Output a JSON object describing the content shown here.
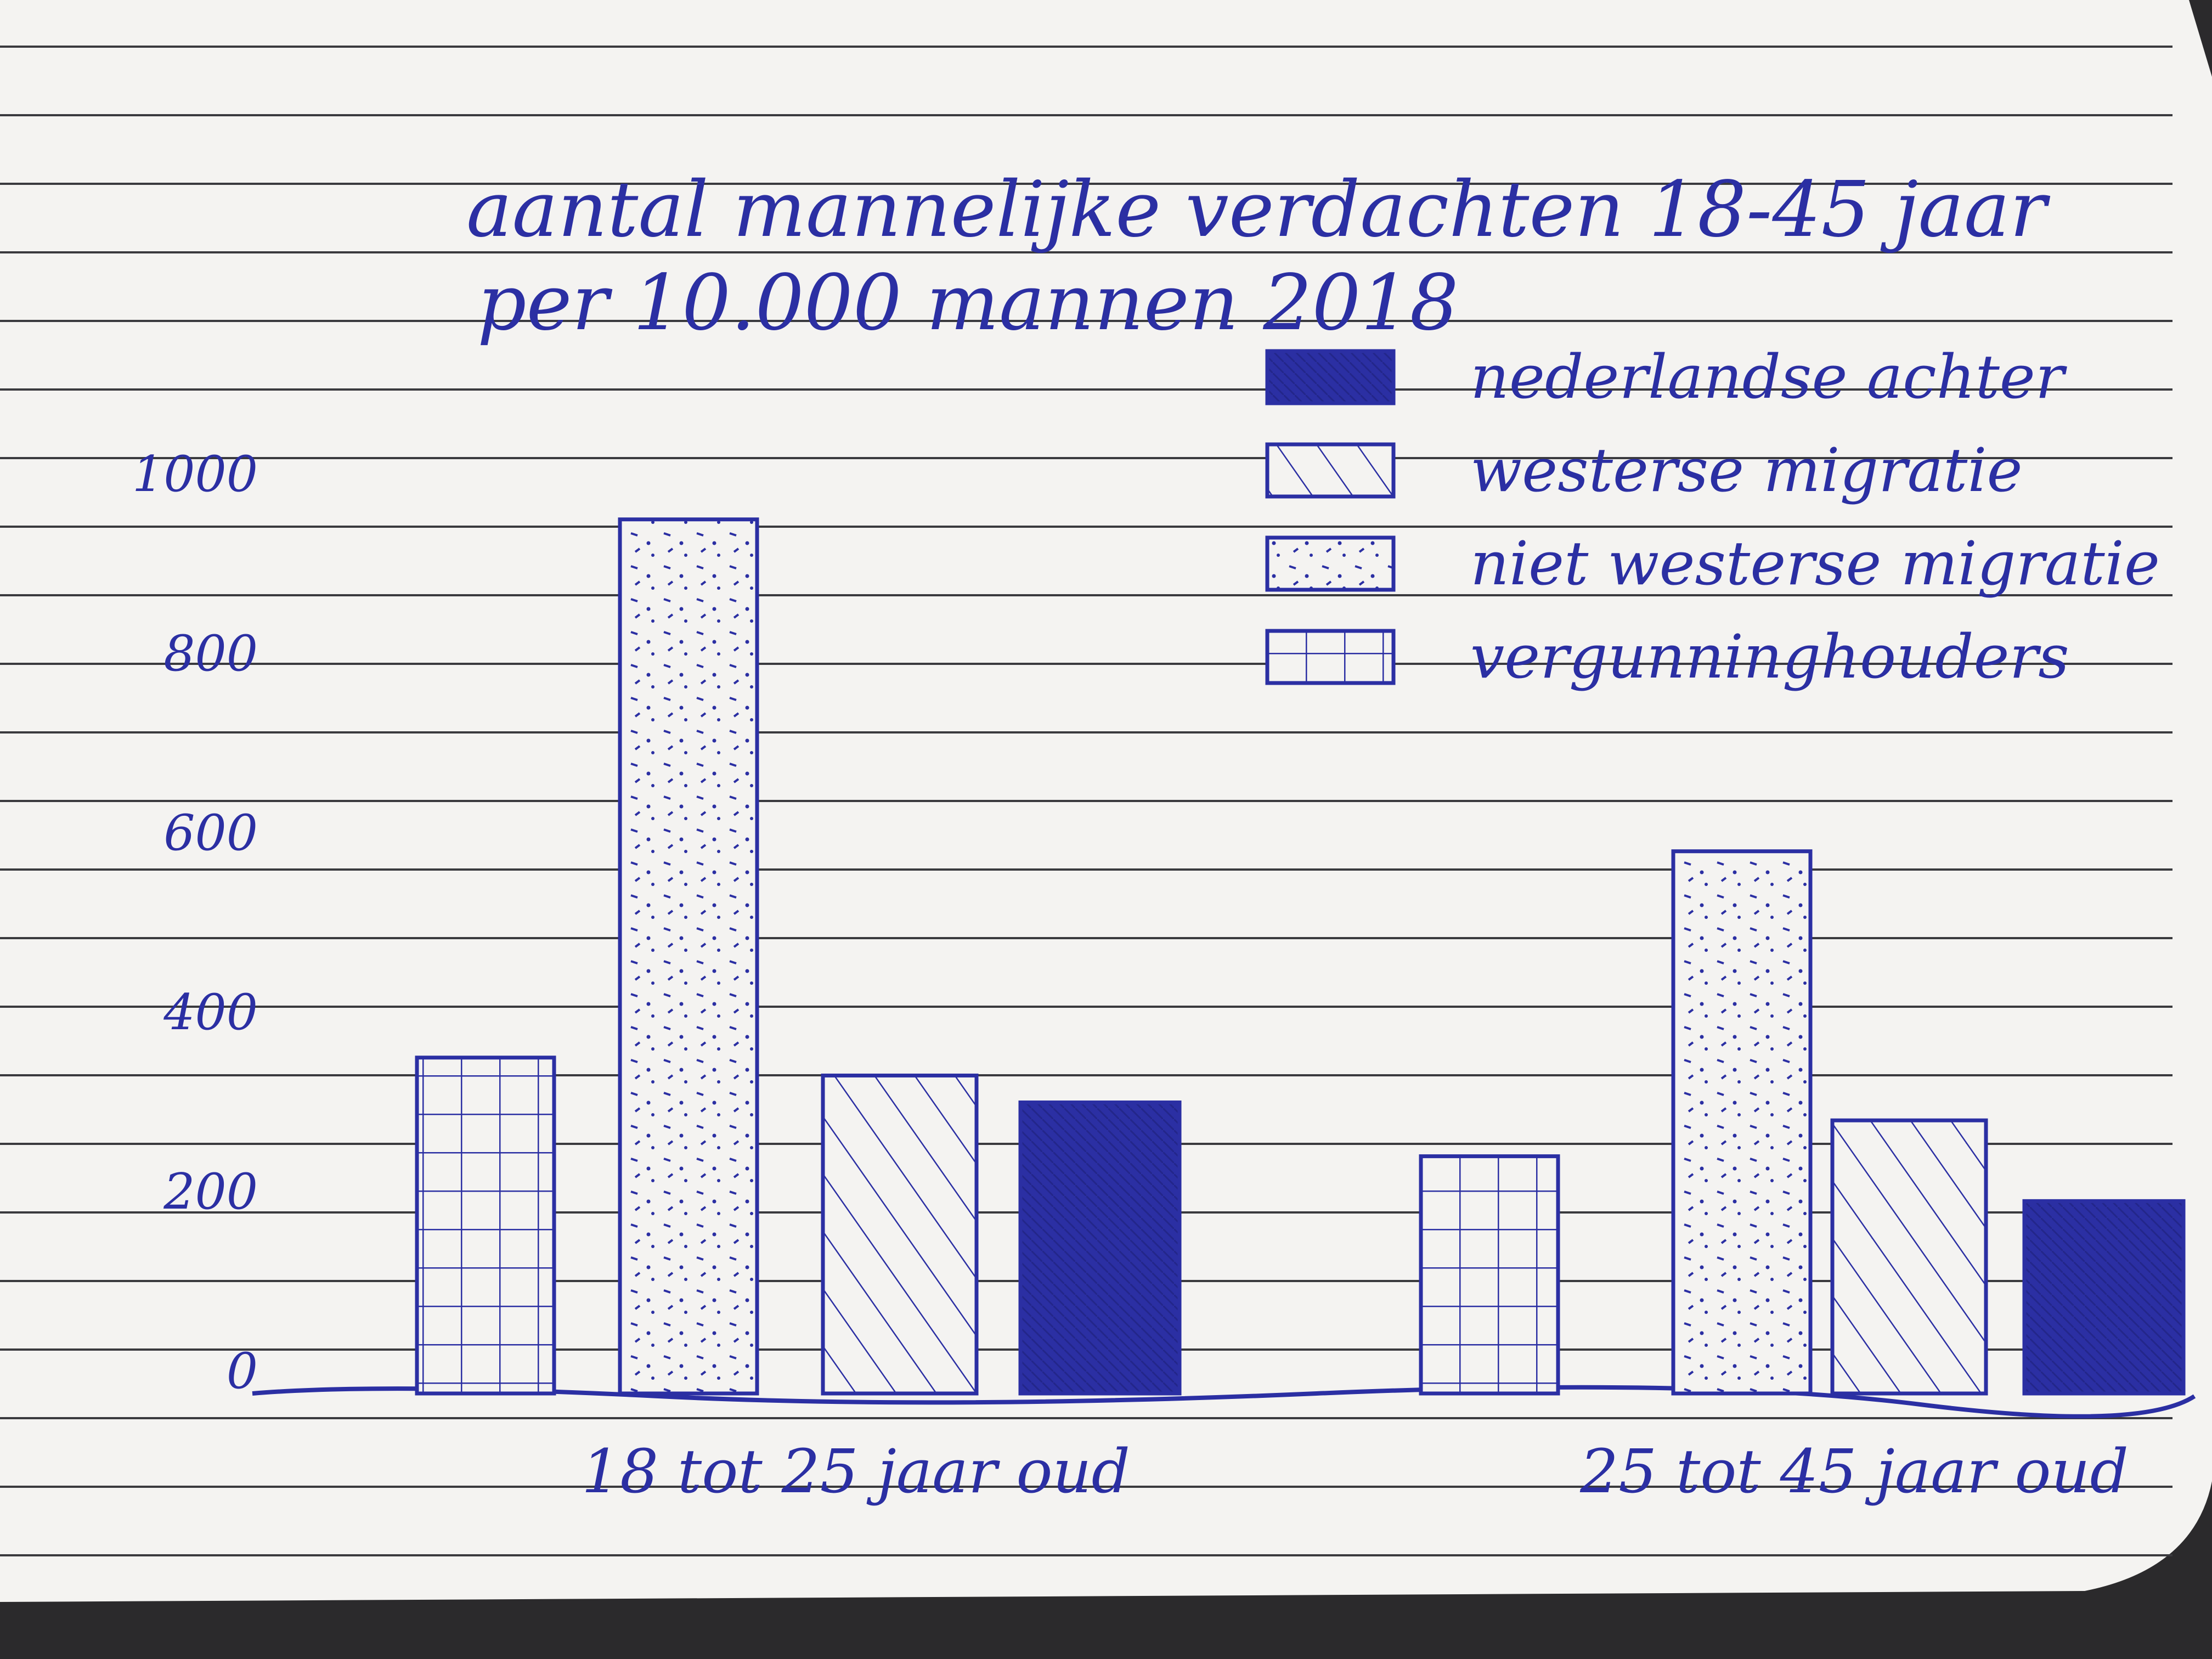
{
  "chart_data": {
    "type": "bar",
    "title": "aantal mannelijke verdachten 18-45 jaar per 10.000 mannen 2018",
    "categories": [
      "18 tot 25 jaar oud",
      "25 tot 45 jaar oud"
    ],
    "series": [
      {
        "name": "vergunninghouders",
        "pattern": "grid",
        "values": [
          350,
          240
        ]
      },
      {
        "name": "niet westerse migratie",
        "pattern": "dots",
        "values": [
          950,
          580
        ]
      },
      {
        "name": "westerse migratie",
        "pattern": "hatch",
        "values": [
          330,
          280
        ]
      },
      {
        "name": "nederlandse achter",
        "pattern": "solid",
        "values": [
          300,
          190
        ]
      }
    ],
    "legend_order": [
      "nederlandse achter",
      "westerse migratie",
      "niet westerse migratie",
      "vergunninghouders"
    ],
    "yticks": [
      0,
      200,
      400,
      600,
      800,
      1000
    ],
    "ylim": [
      0,
      1000
    ],
    "legend_position": "top-right",
    "grid": false
  },
  "colors": {
    "ink": "#2b2fa3",
    "paper": "#f4f3f1",
    "rule": "#3a3a3e",
    "background": "#2b2a2c"
  }
}
